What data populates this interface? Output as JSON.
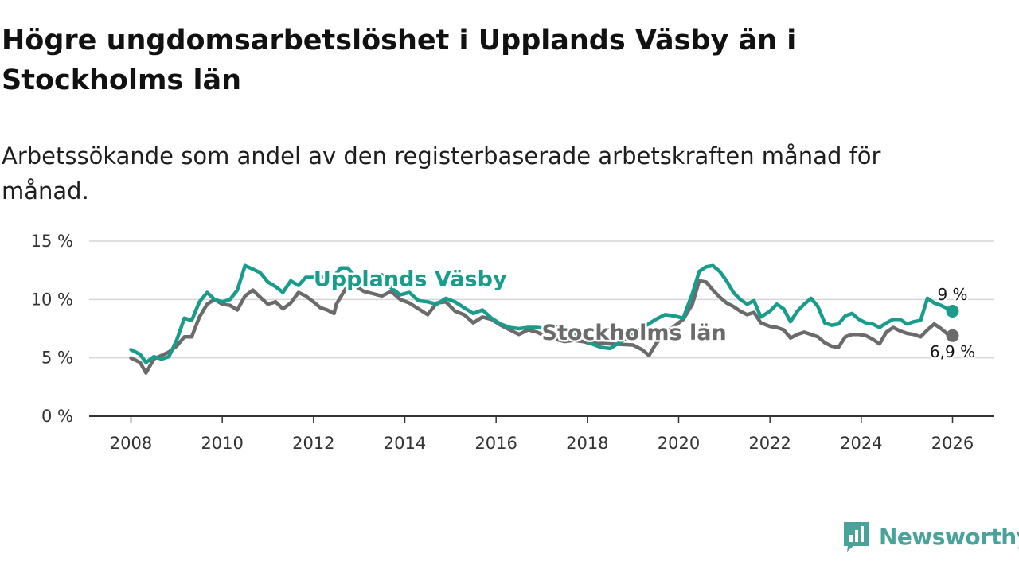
{
  "header": {
    "title": "Högre ungdomsarbetslöshet i Upplands Väsby än i Stockholms län",
    "subtitle": "Arbetssökande som andel av den registerbaserade arbetskraften månad för månad."
  },
  "brand": {
    "name": "Newsworthy",
    "color": "#4aa39a",
    "icon": "bar-chart-bubble-icon"
  },
  "chart_data": {
    "type": "line",
    "title": "Högre ungdomsarbetslöshet i Upplands Väsby än i Stockholms län",
    "subtitle": "Arbetssökande som andel av den registerbaserade arbetskraften månad för månad.",
    "xlabel": "",
    "ylabel": "",
    "xlim": [
      2007.1,
      2026.9
    ],
    "ylim": [
      0,
      15
    ],
    "x_ticks": [
      2008,
      2010,
      2012,
      2014,
      2016,
      2018,
      2020,
      2022,
      2024,
      2026
    ],
    "x_tick_labels": [
      "2008",
      "2010",
      "2012",
      "2014",
      "2016",
      "2018",
      "2020",
      "2022",
      "2024",
      "2026"
    ],
    "y_ticks": [
      0,
      5,
      10,
      15
    ],
    "y_tick_labels": [
      "0 %",
      "5 %",
      "10 %",
      "15 %"
    ],
    "grid": true,
    "legend": "direct labels on lines",
    "series": [
      {
        "name": "Upplands Väsby",
        "label": "Upplands Väsby",
        "color": "#1a9c8c",
        "end_label": "9 %",
        "points": [
          [
            2008.0,
            5.7
          ],
          [
            2008.2,
            5.3
          ],
          [
            2008.33,
            4.6
          ],
          [
            2008.5,
            5.1
          ],
          [
            2008.67,
            4.9
          ],
          [
            2008.83,
            5.1
          ],
          [
            2009.0,
            6.5
          ],
          [
            2009.17,
            8.4
          ],
          [
            2009.33,
            8.2
          ],
          [
            2009.5,
            9.8
          ],
          [
            2009.67,
            10.6
          ],
          [
            2009.83,
            10.0
          ],
          [
            2010.0,
            9.8
          ],
          [
            2010.17,
            10.0
          ],
          [
            2010.33,
            10.8
          ],
          [
            2010.5,
            12.9
          ],
          [
            2010.67,
            12.6
          ],
          [
            2010.83,
            12.3
          ],
          [
            2011.0,
            11.5
          ],
          [
            2011.17,
            11.1
          ],
          [
            2011.33,
            10.6
          ],
          [
            2011.5,
            11.6
          ],
          [
            2011.67,
            11.2
          ],
          [
            2011.83,
            11.9
          ],
          [
            2011.95,
            11.9
          ],
          [
            2012.45,
            12.0
          ],
          [
            2012.6,
            12.7
          ],
          [
            2012.75,
            12.7
          ],
          [
            2012.9,
            12.0
          ],
          [
            2013.1,
            11.3
          ],
          [
            2013.3,
            11.7
          ],
          [
            2013.5,
            12.1
          ],
          [
            2013.7,
            11.0
          ],
          [
            2013.9,
            10.4
          ],
          [
            2014.1,
            10.6
          ],
          [
            2014.3,
            9.9
          ],
          [
            2014.5,
            9.8
          ],
          [
            2014.7,
            9.6
          ],
          [
            2014.9,
            10.1
          ],
          [
            2015.1,
            9.8
          ],
          [
            2015.3,
            9.3
          ],
          [
            2015.5,
            8.8
          ],
          [
            2015.7,
            9.1
          ],
          [
            2015.9,
            8.4
          ],
          [
            2016.1,
            7.9
          ],
          [
            2016.3,
            7.6
          ],
          [
            2016.5,
            7.5
          ],
          [
            2016.7,
            7.6
          ],
          [
            2016.9,
            7.6
          ],
          [
            2017.1,
            7.5
          ],
          [
            2017.3,
            7.7
          ],
          [
            2017.5,
            7.4
          ],
          [
            2017.7,
            7.0
          ],
          [
            2017.9,
            6.8
          ],
          [
            2018.0,
            6.5
          ],
          [
            2018.1,
            6.2
          ],
          [
            2018.3,
            5.9
          ],
          [
            2018.5,
            5.8
          ],
          [
            2019.5,
            8.3
          ],
          [
            2019.7,
            8.7
          ],
          [
            2019.9,
            8.6
          ],
          [
            2020.1,
            8.4
          ],
          [
            2020.3,
            10.5
          ],
          [
            2020.45,
            12.4
          ],
          [
            2020.6,
            12.8
          ],
          [
            2020.75,
            12.9
          ],
          [
            2020.9,
            12.4
          ],
          [
            2021.05,
            11.6
          ],
          [
            2021.2,
            10.6
          ],
          [
            2021.35,
            10.0
          ],
          [
            2021.5,
            9.6
          ],
          [
            2021.65,
            9.9
          ],
          [
            2021.8,
            8.5
          ],
          [
            2022.0,
            9.0
          ],
          [
            2022.15,
            9.6
          ],
          [
            2022.3,
            9.2
          ],
          [
            2022.45,
            8.1
          ],
          [
            2022.6,
            9.0
          ],
          [
            2022.75,
            9.6
          ],
          [
            2022.9,
            10.1
          ],
          [
            2023.05,
            9.4
          ],
          [
            2023.2,
            8.0
          ],
          [
            2023.35,
            7.8
          ],
          [
            2023.5,
            7.9
          ],
          [
            2023.65,
            8.6
          ],
          [
            2023.8,
            8.8
          ],
          [
            2023.95,
            8.3
          ],
          [
            2024.1,
            8.0
          ],
          [
            2024.25,
            7.9
          ],
          [
            2024.4,
            7.6
          ],
          [
            2024.55,
            8.0
          ],
          [
            2024.7,
            8.3
          ],
          [
            2024.85,
            8.3
          ],
          [
            2025.0,
            7.9
          ],
          [
            2025.15,
            8.1
          ],
          [
            2025.3,
            8.2
          ],
          [
            2025.45,
            10.1
          ],
          [
            2025.6,
            9.7
          ],
          [
            2025.75,
            9.5
          ],
          [
            2025.9,
            9.2
          ],
          [
            2026.0,
            9.0
          ]
        ]
      },
      {
        "name": "Stockholms län",
        "label": "Stockholms län",
        "color": "#6b6b6b",
        "end_label": "6,9 %",
        "points": [
          [
            2008.0,
            5.0
          ],
          [
            2008.2,
            4.6
          ],
          [
            2008.33,
            3.7
          ],
          [
            2008.5,
            4.9
          ],
          [
            2008.67,
            5.2
          ],
          [
            2008.83,
            5.5
          ],
          [
            2009.0,
            6.0
          ],
          [
            2009.17,
            6.8
          ],
          [
            2009.33,
            6.8
          ],
          [
            2009.5,
            8.5
          ],
          [
            2009.67,
            9.6
          ],
          [
            2009.83,
            10.0
          ],
          [
            2010.0,
            9.6
          ],
          [
            2010.17,
            9.5
          ],
          [
            2010.33,
            9.1
          ],
          [
            2010.5,
            10.3
          ],
          [
            2010.67,
            10.8
          ],
          [
            2010.83,
            10.2
          ],
          [
            2011.0,
            9.6
          ],
          [
            2011.17,
            9.8
          ],
          [
            2011.33,
            9.2
          ],
          [
            2011.5,
            9.7
          ],
          [
            2011.67,
            10.6
          ],
          [
            2011.83,
            10.3
          ],
          [
            2012.0,
            9.8
          ],
          [
            2012.15,
            9.3
          ],
          [
            2012.3,
            9.1
          ],
          [
            2012.45,
            8.8
          ],
          [
            2012.5,
            9.6
          ],
          [
            2012.7,
            10.9
          ],
          [
            2012.9,
            11.2
          ],
          [
            2013.1,
            10.7
          ],
          [
            2013.3,
            10.5
          ],
          [
            2013.5,
            10.3
          ],
          [
            2013.7,
            10.7
          ],
          [
            2013.9,
            10.0
          ],
          [
            2014.1,
            9.7
          ],
          [
            2014.3,
            9.2
          ],
          [
            2014.5,
            8.7
          ],
          [
            2014.7,
            9.7
          ],
          [
            2014.9,
            9.8
          ],
          [
            2015.1,
            9.0
          ],
          [
            2015.3,
            8.7
          ],
          [
            2015.5,
            8.0
          ],
          [
            2015.7,
            8.5
          ],
          [
            2015.9,
            8.3
          ],
          [
            2016.1,
            7.8
          ],
          [
            2016.3,
            7.4
          ],
          [
            2016.5,
            7.0
          ],
          [
            2016.7,
            7.4
          ],
          [
            2016.9,
            7.2
          ],
          [
            2017.1,
            6.8
          ],
          [
            2017.3,
            6.6
          ],
          [
            2017.5,
            6.4
          ],
          [
            2017.7,
            6.5
          ],
          [
            2017.9,
            6.4
          ],
          [
            2018.0,
            6.3
          ],
          [
            2019.0,
            6.1
          ],
          [
            2019.2,
            5.7
          ],
          [
            2019.35,
            5.2
          ],
          [
            2019.5,
            6.2
          ],
          [
            2019.7,
            7.1
          ],
          [
            2019.9,
            7.7
          ],
          [
            2020.1,
            8.3
          ],
          [
            2020.3,
            9.6
          ],
          [
            2020.45,
            11.6
          ],
          [
            2020.6,
            11.5
          ],
          [
            2020.75,
            10.8
          ],
          [
            2020.9,
            10.2
          ],
          [
            2021.05,
            9.7
          ],
          [
            2021.2,
            9.4
          ],
          [
            2021.35,
            9.0
          ],
          [
            2021.5,
            8.7
          ],
          [
            2021.65,
            8.9
          ],
          [
            2021.8,
            8.0
          ],
          [
            2022.0,
            7.7
          ],
          [
            2022.15,
            7.6
          ],
          [
            2022.3,
            7.4
          ],
          [
            2022.45,
            6.7
          ],
          [
            2022.6,
            7.0
          ],
          [
            2022.75,
            7.2
          ],
          [
            2022.9,
            7.0
          ],
          [
            2023.05,
            6.8
          ],
          [
            2023.2,
            6.3
          ],
          [
            2023.35,
            6.0
          ],
          [
            2023.5,
            5.9
          ],
          [
            2023.65,
            6.8
          ],
          [
            2023.8,
            7.0
          ],
          [
            2023.95,
            7.0
          ],
          [
            2024.1,
            6.9
          ],
          [
            2024.25,
            6.6
          ],
          [
            2024.4,
            6.2
          ],
          [
            2024.55,
            7.2
          ],
          [
            2024.7,
            7.6
          ],
          [
            2024.85,
            7.3
          ],
          [
            2025.0,
            7.1
          ],
          [
            2025.15,
            7.0
          ],
          [
            2025.3,
            6.8
          ],
          [
            2025.45,
            7.4
          ],
          [
            2025.6,
            7.9
          ],
          [
            2025.75,
            7.5
          ],
          [
            2025.9,
            7.0
          ],
          [
            2026.0,
            6.9
          ]
        ]
      }
    ]
  }
}
